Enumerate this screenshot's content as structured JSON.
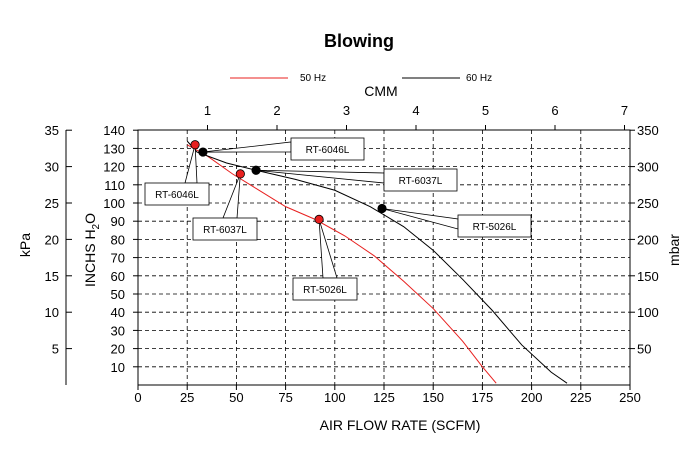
{
  "chart_data": {
    "type": "line",
    "title": "Blowing",
    "xlabel": "AIR FLOW RATE (SCFM)",
    "x2label": "CMM",
    "ylabel_left_outer": "kPa",
    "ylabel_left_inner": "INCHS H",
    "ylabel_left_inner_sub": "2",
    "ylabel_left_inner_tail": "O",
    "ylabel_right": "mbar",
    "xlim": [
      0,
      250
    ],
    "x_ticks": [
      "0",
      "25",
      "50",
      "75",
      "100",
      "125",
      "150",
      "175",
      "200",
      "225",
      "250"
    ],
    "x2_ticks": [
      "1",
      "2",
      "3",
      "4",
      "5",
      "6",
      "7"
    ],
    "y_inh2o_ticks": [
      "10",
      "20",
      "30",
      "40",
      "50",
      "60",
      "70",
      "80",
      "90",
      "100",
      "110",
      "120",
      "130",
      "140"
    ],
    "y_kpa_ticks": [
      "5",
      "10",
      "15",
      "20",
      "25",
      "30",
      "35"
    ],
    "y_mbar_ticks": [
      "50",
      "100",
      "150",
      "200",
      "250",
      "300",
      "350"
    ],
    "legend": [
      {
        "label": "50 Hz",
        "color": "#e8201f"
      },
      {
        "label": "60 Hz",
        "color": "#000000"
      }
    ],
    "series": [
      {
        "name": "50 Hz",
        "color": "#e8201f",
        "x": [
          25,
          35,
          48,
          60,
          75,
          90,
          105,
          120,
          135,
          150,
          165,
          175,
          182
        ],
        "y": [
          132,
          126,
          116,
          108,
          98,
          91,
          82,
          71,
          57,
          42,
          24,
          10,
          1
        ]
      },
      {
        "name": "60 Hz",
        "color": "#000000",
        "x": [
          25,
          30,
          45,
          60,
          80,
          100,
          118,
          135,
          150,
          165,
          180,
          195,
          210,
          218
        ],
        "y": [
          134,
          128,
          122,
          118,
          113,
          107,
          98,
          87,
          74,
          58,
          41,
          22,
          7,
          1
        ]
      }
    ],
    "annotations": [
      {
        "label": "RT-6046L",
        "color": "#e8201f",
        "x": 29,
        "y": 132
      },
      {
        "label": "RT-6037L",
        "color": "#e8201f",
        "x": 52,
        "y": 116
      },
      {
        "label": "RT-5026L",
        "color": "#e8201f",
        "x": 92,
        "y": 91
      },
      {
        "label": "RT-6046L",
        "color": "#000000",
        "x": 33,
        "y": 128
      },
      {
        "label": "RT-6037L",
        "color": "#000000",
        "x": 60,
        "y": 118
      },
      {
        "label": "RT-5026L",
        "color": "#000000",
        "x": 124,
        "y": 97
      }
    ]
  }
}
